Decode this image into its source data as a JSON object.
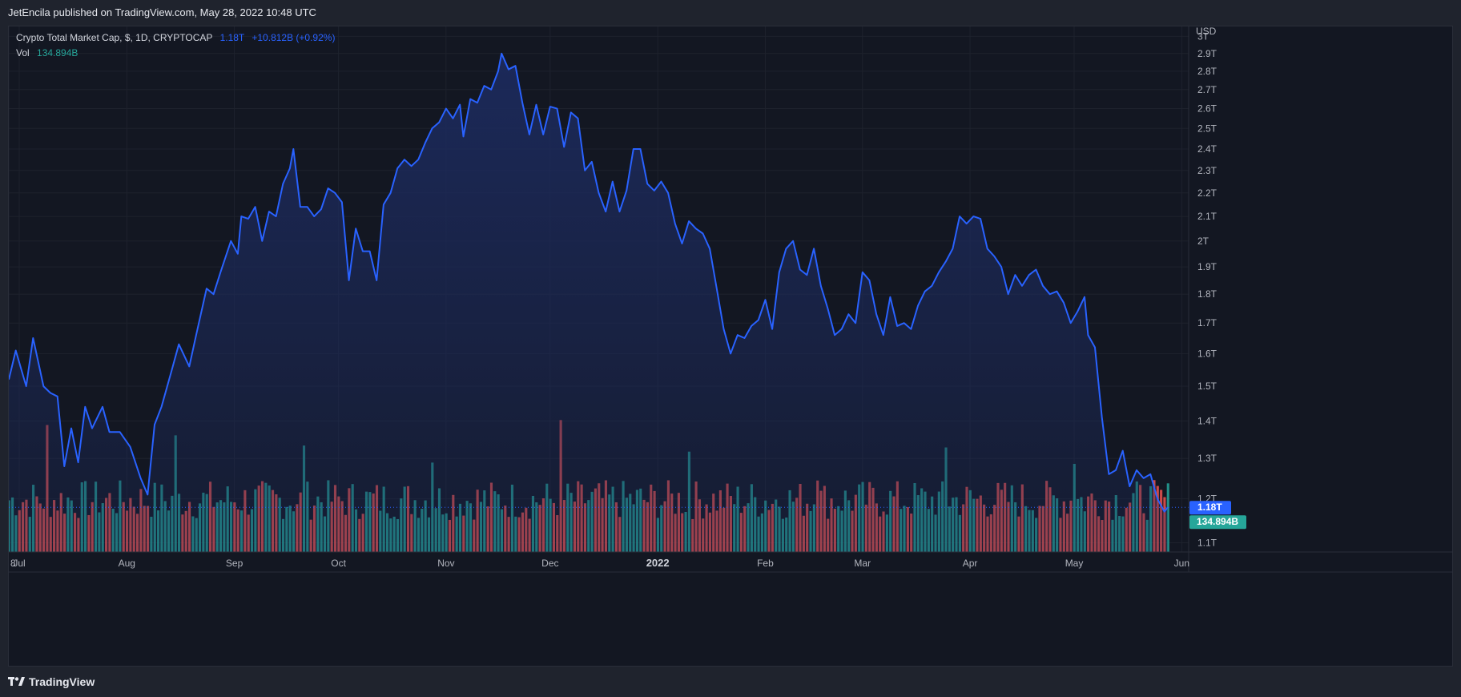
{
  "header": {
    "published_by": "JetEncila published on TradingView.com, May 28, 2022 10:48 UTC"
  },
  "legend": {
    "symbol": "Crypto Total Market Cap, $, 1D, CRYPTOCAP",
    "last_value": "1.18T",
    "change": "+10.812B (+0.92%)",
    "vol_label": "Vol",
    "vol_value": "134.894B"
  },
  "footer": {
    "logo_text": "TradingView"
  },
  "colors": {
    "line": "#2962ff",
    "area": "#1c2a5c",
    "up": "#26a69a",
    "down": "#ef5350",
    "background": "#131722",
    "grid": "#1e222d"
  },
  "chart_data": {
    "type": "area",
    "title": "Crypto Total Market Cap, $, 1D, CRYPTOCAP",
    "y_axis": {
      "unit": "USD",
      "scale": "log",
      "range_trillions": [
        1.08,
        3.05
      ],
      "tick_labels": [
        "3T",
        "2.9T",
        "2.8T",
        "2.7T",
        "2.6T",
        "2.5T",
        "2.4T",
        "2.3T",
        "2.2T",
        "2.1T",
        "2T",
        "1.9T",
        "1.8T",
        "1.7T",
        "1.6T",
        "1.5T",
        "1.4T",
        "1.3T",
        "1.2T",
        "1.1T"
      ],
      "tick_values": [
        3.0,
        2.9,
        2.8,
        2.7,
        2.6,
        2.5,
        2.4,
        2.3,
        2.2,
        2.1,
        2.0,
        1.9,
        1.8,
        1.7,
        1.6,
        1.5,
        1.4,
        1.3,
        1.2,
        1.1
      ]
    },
    "x_axis": {
      "range": [
        "2021-06-28",
        "2022-06-03"
      ],
      "tick_labels": [
        "8",
        "Jul",
        "Aug",
        "Sep",
        "Oct",
        "Nov",
        "Dec",
        "2022",
        "Feb",
        "Mar",
        "Apr",
        "May",
        "Jun"
      ],
      "tick_dates": [
        "2021-06-28",
        "2021-07-01",
        "2021-08-01",
        "2021-09-01",
        "2021-10-01",
        "2021-11-01",
        "2021-12-01",
        "2022-01-01",
        "2022-02-01",
        "2022-03-01",
        "2022-04-01",
        "2022-05-01",
        "2022-06-01"
      ]
    },
    "series": [
      {
        "name": "Crypto Total Market Cap",
        "unit": "T",
        "points": [
          [
            "2021-06-28",
            1.52
          ],
          [
            "2021-06-30",
            1.61
          ],
          [
            "2021-07-03",
            1.5
          ],
          [
            "2021-07-05",
            1.65
          ],
          [
            "2021-07-08",
            1.5
          ],
          [
            "2021-07-10",
            1.48
          ],
          [
            "2021-07-12",
            1.47
          ],
          [
            "2021-07-14",
            1.28
          ],
          [
            "2021-07-16",
            1.38
          ],
          [
            "2021-07-18",
            1.29
          ],
          [
            "2021-07-20",
            1.44
          ],
          [
            "2021-07-22",
            1.38
          ],
          [
            "2021-07-25",
            1.44
          ],
          [
            "2021-07-27",
            1.37
          ],
          [
            "2021-07-30",
            1.37
          ],
          [
            "2021-08-02",
            1.33
          ],
          [
            "2021-08-05",
            1.25
          ],
          [
            "2021-08-07",
            1.21
          ],
          [
            "2021-08-09",
            1.39
          ],
          [
            "2021-08-11",
            1.44
          ],
          [
            "2021-08-14",
            1.55
          ],
          [
            "2021-08-16",
            1.63
          ],
          [
            "2021-08-19",
            1.56
          ],
          [
            "2021-08-21",
            1.66
          ],
          [
            "2021-08-24",
            1.82
          ],
          [
            "2021-08-26",
            1.8
          ],
          [
            "2021-08-28",
            1.88
          ],
          [
            "2021-08-31",
            2.0
          ],
          [
            "2021-09-02",
            1.95
          ],
          [
            "2021-09-03",
            2.1
          ],
          [
            "2021-09-05",
            2.09
          ],
          [
            "2021-09-07",
            2.14
          ],
          [
            "2021-09-09",
            2.0
          ],
          [
            "2021-09-11",
            2.12
          ],
          [
            "2021-09-13",
            2.1
          ],
          [
            "2021-09-15",
            2.24
          ],
          [
            "2021-09-17",
            2.31
          ],
          [
            "2021-09-18",
            2.4
          ],
          [
            "2021-09-20",
            2.14
          ],
          [
            "2021-09-22",
            2.14
          ],
          [
            "2021-09-24",
            2.1
          ],
          [
            "2021-09-26",
            2.13
          ],
          [
            "2021-09-28",
            2.22
          ],
          [
            "2021-09-30",
            2.2
          ],
          [
            "2021-10-02",
            2.16
          ],
          [
            "2021-10-04",
            1.85
          ],
          [
            "2021-10-06",
            2.05
          ],
          [
            "2021-10-08",
            1.96
          ],
          [
            "2021-10-10",
            1.96
          ],
          [
            "2021-10-12",
            1.85
          ],
          [
            "2021-10-14",
            2.15
          ],
          [
            "2021-10-16",
            2.2
          ],
          [
            "2021-10-18",
            2.31
          ],
          [
            "2021-10-20",
            2.35
          ],
          [
            "2021-10-22",
            2.32
          ],
          [
            "2021-10-24",
            2.35
          ],
          [
            "2021-10-26",
            2.43
          ],
          [
            "2021-10-28",
            2.5
          ],
          [
            "2021-10-30",
            2.53
          ],
          [
            "2021-11-01",
            2.6
          ],
          [
            "2021-11-03",
            2.55
          ],
          [
            "2021-11-05",
            2.62
          ],
          [
            "2021-11-06",
            2.46
          ],
          [
            "2021-11-08",
            2.65
          ],
          [
            "2021-11-10",
            2.63
          ],
          [
            "2021-11-12",
            2.72
          ],
          [
            "2021-11-14",
            2.7
          ],
          [
            "2021-11-16",
            2.8
          ],
          [
            "2021-11-17",
            2.9
          ],
          [
            "2021-11-19",
            2.81
          ],
          [
            "2021-11-21",
            2.83
          ],
          [
            "2021-11-23",
            2.63
          ],
          [
            "2021-11-25",
            2.47
          ],
          [
            "2021-11-27",
            2.62
          ],
          [
            "2021-11-29",
            2.47
          ],
          [
            "2021-12-01",
            2.61
          ],
          [
            "2021-12-03",
            2.6
          ],
          [
            "2021-12-05",
            2.41
          ],
          [
            "2021-12-07",
            2.58
          ],
          [
            "2021-12-09",
            2.55
          ],
          [
            "2021-12-11",
            2.3
          ],
          [
            "2021-12-13",
            2.34
          ],
          [
            "2021-12-15",
            2.2
          ],
          [
            "2021-12-17",
            2.12
          ],
          [
            "2021-12-19",
            2.25
          ],
          [
            "2021-12-21",
            2.12
          ],
          [
            "2021-12-23",
            2.21
          ],
          [
            "2021-12-25",
            2.4
          ],
          [
            "2021-12-27",
            2.4
          ],
          [
            "2021-12-29",
            2.24
          ],
          [
            "2021-12-31",
            2.21
          ],
          [
            "2022-01-02",
            2.25
          ],
          [
            "2022-01-04",
            2.2
          ],
          [
            "2022-01-06",
            2.07
          ],
          [
            "2022-01-08",
            1.99
          ],
          [
            "2022-01-10",
            2.08
          ],
          [
            "2022-01-12",
            2.05
          ],
          [
            "2022-01-14",
            2.03
          ],
          [
            "2022-01-16",
            1.97
          ],
          [
            "2022-01-18",
            1.82
          ],
          [
            "2022-01-20",
            1.68
          ],
          [
            "2022-01-22",
            1.6
          ],
          [
            "2022-01-24",
            1.66
          ],
          [
            "2022-01-26",
            1.65
          ],
          [
            "2022-01-28",
            1.69
          ],
          [
            "2022-01-30",
            1.71
          ],
          [
            "2022-02-01",
            1.78
          ],
          [
            "2022-02-03",
            1.68
          ],
          [
            "2022-02-05",
            1.88
          ],
          [
            "2022-02-07",
            1.97
          ],
          [
            "2022-02-09",
            2.0
          ],
          [
            "2022-02-11",
            1.89
          ],
          [
            "2022-02-13",
            1.87
          ],
          [
            "2022-02-15",
            1.97
          ],
          [
            "2022-02-17",
            1.83
          ],
          [
            "2022-02-19",
            1.75
          ],
          [
            "2022-02-21",
            1.66
          ],
          [
            "2022-02-23",
            1.68
          ],
          [
            "2022-02-25",
            1.73
          ],
          [
            "2022-02-27",
            1.7
          ],
          [
            "2022-03-01",
            1.88
          ],
          [
            "2022-03-03",
            1.85
          ],
          [
            "2022-03-05",
            1.73
          ],
          [
            "2022-03-07",
            1.66
          ],
          [
            "2022-03-09",
            1.79
          ],
          [
            "2022-03-11",
            1.69
          ],
          [
            "2022-03-13",
            1.7
          ],
          [
            "2022-03-15",
            1.68
          ],
          [
            "2022-03-17",
            1.76
          ],
          [
            "2022-03-19",
            1.81
          ],
          [
            "2022-03-21",
            1.83
          ],
          [
            "2022-03-23",
            1.88
          ],
          [
            "2022-03-25",
            1.92
          ],
          [
            "2022-03-27",
            1.97
          ],
          [
            "2022-03-29",
            2.1
          ],
          [
            "2022-03-31",
            2.07
          ],
          [
            "2022-04-02",
            2.1
          ],
          [
            "2022-04-04",
            2.09
          ],
          [
            "2022-04-06",
            1.97
          ],
          [
            "2022-04-08",
            1.94
          ],
          [
            "2022-04-10",
            1.9
          ],
          [
            "2022-04-12",
            1.8
          ],
          [
            "2022-04-14",
            1.87
          ],
          [
            "2022-04-16",
            1.83
          ],
          [
            "2022-04-18",
            1.87
          ],
          [
            "2022-04-20",
            1.89
          ],
          [
            "2022-04-22",
            1.83
          ],
          [
            "2022-04-24",
            1.8
          ],
          [
            "2022-04-26",
            1.81
          ],
          [
            "2022-04-28",
            1.77
          ],
          [
            "2022-04-30",
            1.7
          ],
          [
            "2022-05-02",
            1.74
          ],
          [
            "2022-05-04",
            1.79
          ],
          [
            "2022-05-05",
            1.66
          ],
          [
            "2022-05-07",
            1.62
          ],
          [
            "2022-05-09",
            1.41
          ],
          [
            "2022-05-11",
            1.26
          ],
          [
            "2022-05-13",
            1.27
          ],
          [
            "2022-05-15",
            1.32
          ],
          [
            "2022-05-17",
            1.23
          ],
          [
            "2022-05-19",
            1.27
          ],
          [
            "2022-05-21",
            1.25
          ],
          [
            "2022-05-23",
            1.26
          ],
          [
            "2022-05-25",
            1.2
          ],
          [
            "2022-05-27",
            1.17
          ],
          [
            "2022-05-28",
            1.18
          ]
        ]
      },
      {
        "name": "Vol",
        "unit": "B",
        "last_value": "134.894B",
        "note": "daily volume histogram; green = up day, red = down day"
      }
    ],
    "markers": [
      {
        "label": "1.18T",
        "value": 1.18,
        "color": "#2962ff"
      },
      {
        "label": "134.894B",
        "color": "#26a69a"
      }
    ],
    "grid": true,
    "legend_position": "top-left"
  }
}
